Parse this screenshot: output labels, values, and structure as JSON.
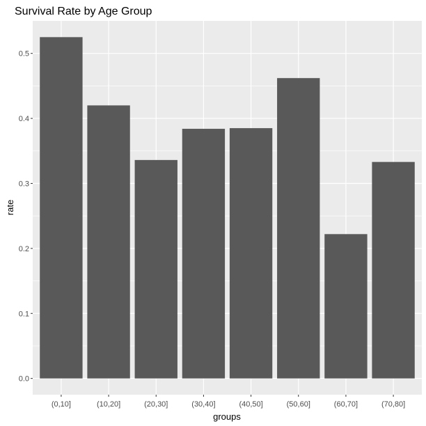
{
  "chart_data": {
    "type": "bar",
    "title": "Survival Rate by Age Group",
    "xlabel": "groups",
    "ylabel": "rate",
    "categories": [
      "(0,10]",
      "(10,20]",
      "(20,30]",
      "(30,40]",
      "(40,50]",
      "(50,60]",
      "(60,70]",
      "(70,80]"
    ],
    "values": [
      0.525,
      0.42,
      0.336,
      0.384,
      0.385,
      0.462,
      0.222,
      0.333
    ],
    "yticks": [
      "0.0",
      "0.1",
      "0.2",
      "0.3",
      "0.4",
      "0.5"
    ],
    "ylim": [
      -0.025,
      0.55
    ],
    "grid": true,
    "legend": "none",
    "colors": {
      "bar": "#595959",
      "panel": "#ebebeb",
      "grid_major": "#ffffff",
      "tick_text": "#4d4d4d"
    }
  }
}
